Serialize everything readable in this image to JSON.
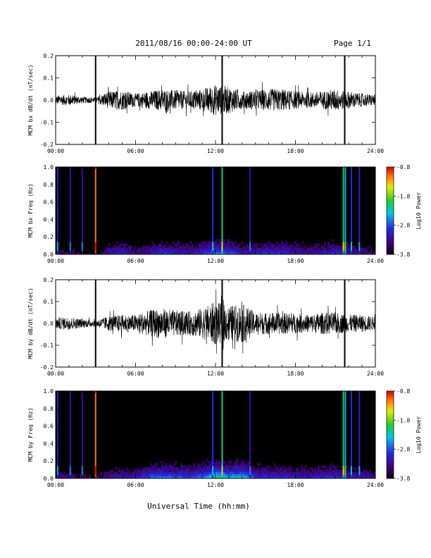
{
  "header": {
    "title": "2011/08/16  00:00-24:00 UT",
    "page": "Page 1/1"
  },
  "chart_data": [
    {
      "type": "line",
      "panel": "bx_timeseries",
      "ylabel": "MCM bx dB/dt (nT/sec)",
      "ylim": [
        -0.2,
        0.2
      ],
      "yticks": [
        "-0.2",
        "-0.1",
        "0.0",
        "0.1",
        "0.2"
      ],
      "xticks": [
        "00:00",
        "06:00",
        "12:00",
        "18:00",
        "24:00"
      ],
      "spikes_hours": [
        3.0,
        12.5,
        21.7
      ],
      "envelope": {
        "hours": [
          0,
          1,
          2,
          3,
          4,
          5,
          6,
          7,
          8,
          9,
          10,
          11,
          12,
          13,
          14,
          15,
          16,
          17,
          18,
          19,
          20,
          21,
          22,
          23,
          24
        ],
        "amplitude": [
          0.02,
          0.025,
          0.015,
          0.012,
          0.04,
          0.045,
          0.03,
          0.04,
          0.05,
          0.045,
          0.04,
          0.05,
          0.07,
          0.06,
          0.04,
          0.045,
          0.05,
          0.05,
          0.04,
          0.035,
          0.04,
          0.05,
          0.04,
          0.03,
          0.025
        ]
      }
    },
    {
      "type": "heatmap",
      "panel": "bx_spectrogram",
      "ylabel": "MCM bx Freq (Hz)",
      "ylim": [
        0.0,
        1.0
      ],
      "yticks": [
        "0.0",
        "0.2",
        "0.4",
        "0.6",
        "0.8",
        "1.0"
      ],
      "xticks": [
        "00:00",
        "06:00",
        "12:00",
        "18:00",
        "24:00"
      ],
      "colorbar": {
        "label": "Log10 Power",
        "ticks": [
          "-0.8",
          "-1.8",
          "-2.8",
          "-3.8"
        ],
        "range": [
          -3.8,
          -0.8
        ]
      },
      "vertical_lines": [
        {
          "hour": 0.15,
          "level": 0.25
        },
        {
          "hour": 1.1,
          "level": 0.2
        },
        {
          "hour": 2.0,
          "level": 0.2
        },
        {
          "hour": 3.0,
          "level": 0.9
        },
        {
          "hour": 11.8,
          "level": 0.3
        },
        {
          "hour": 12.5,
          "level": 0.55
        },
        {
          "hour": 14.6,
          "level": 0.2
        },
        {
          "hour": 21.6,
          "level": 0.6
        },
        {
          "hour": 21.75,
          "level": 0.45
        },
        {
          "hour": 22.2,
          "level": 0.3
        },
        {
          "hour": 22.8,
          "level": 0.25
        }
      ]
    },
    {
      "type": "line",
      "panel": "by_timeseries",
      "ylabel": "MCM by dB/dt (nT/sec)",
      "ylim": [
        -0.2,
        0.2
      ],
      "yticks": [
        "-0.2",
        "-0.1",
        "0.0",
        "0.1",
        "0.2"
      ],
      "xticks": [
        "00:00",
        "06:00",
        "12:00",
        "18:00",
        "24:00"
      ],
      "spikes_hours": [
        3.0,
        12.5,
        21.7
      ],
      "envelope": {
        "hours": [
          0,
          1,
          2,
          3,
          4,
          5,
          6,
          7,
          8,
          9,
          10,
          11,
          12,
          13,
          14,
          15,
          16,
          17,
          18,
          19,
          20,
          21,
          22,
          23,
          24
        ],
        "amplitude": [
          0.025,
          0.03,
          0.02,
          0.015,
          0.035,
          0.04,
          0.04,
          0.06,
          0.07,
          0.06,
          0.055,
          0.07,
          0.1,
          0.08,
          0.09,
          0.05,
          0.05,
          0.05,
          0.045,
          0.04,
          0.05,
          0.05,
          0.04,
          0.04,
          0.03
        ]
      }
    },
    {
      "type": "heatmap",
      "panel": "by_spectrogram",
      "ylabel": "MCM by Freq (Hz)",
      "ylim": [
        0.0,
        1.0
      ],
      "yticks": [
        "0.0",
        "0.2",
        "0.4",
        "0.6",
        "0.8",
        "1.0"
      ],
      "xticks": [
        "00:00",
        "06:00",
        "12:00",
        "18:00",
        "24:00"
      ],
      "colorbar": {
        "label": "Log10 Power",
        "ticks": [
          "-0.8",
          "-1.8",
          "-2.8",
          "-3.8"
        ],
        "range": [
          -3.8,
          -0.8
        ]
      },
      "vertical_lines": [
        {
          "hour": 0.15,
          "level": 0.25
        },
        {
          "hour": 1.1,
          "level": 0.2
        },
        {
          "hour": 2.0,
          "level": 0.2
        },
        {
          "hour": 3.0,
          "level": 0.9
        },
        {
          "hour": 11.8,
          "level": 0.3
        },
        {
          "hour": 12.5,
          "level": 0.55
        },
        {
          "hour": 14.6,
          "level": 0.2
        },
        {
          "hour": 21.6,
          "level": 0.6
        },
        {
          "hour": 21.75,
          "level": 0.45
        },
        {
          "hour": 22.2,
          "level": 0.3
        },
        {
          "hour": 22.8,
          "level": 0.25
        }
      ]
    }
  ],
  "xlabel": "Universal Time (hh:mm)"
}
